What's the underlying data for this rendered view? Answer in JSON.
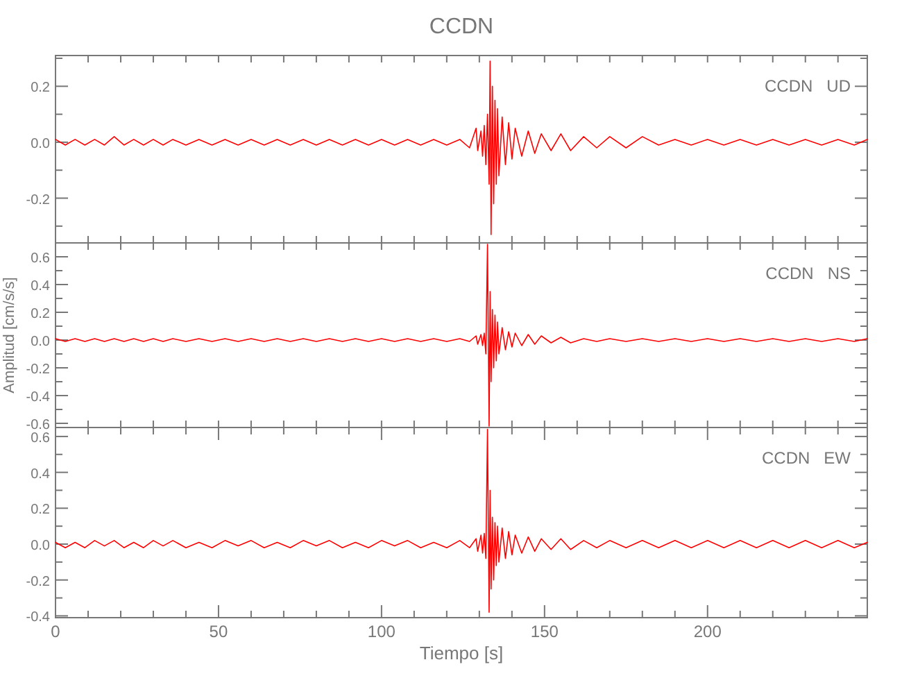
{
  "chart_data": [
    {
      "type": "line",
      "title": "CCDN",
      "annotations": [
        "CCDN   UD"
      ],
      "tick_labels": "y",
      "xlim": [
        0,
        249
      ],
      "xticks": [
        {
          "value": 0,
          "label": null
        },
        {
          "value": 10,
          "label": null
        },
        {
          "value": 20,
          "label": null
        },
        {
          "value": 30,
          "label": null
        },
        {
          "value": 40,
          "label": null
        },
        {
          "value": 50,
          "label": null
        },
        {
          "value": 60,
          "label": null
        },
        {
          "value": 70,
          "label": null
        },
        {
          "value": 80,
          "label": null
        },
        {
          "value": 90,
          "label": null
        },
        {
          "value": 100,
          "label": null
        },
        {
          "value": 110,
          "label": null
        },
        {
          "value": 120,
          "label": null
        },
        {
          "value": 130,
          "label": null
        },
        {
          "value": 140,
          "label": null
        },
        {
          "value": 150,
          "label": null
        },
        {
          "value": 160,
          "label": null
        },
        {
          "value": 170,
          "label": null
        },
        {
          "value": 180,
          "label": null
        },
        {
          "value": 190,
          "label": null
        },
        {
          "value": 200,
          "label": null
        },
        {
          "value": 210,
          "label": null
        },
        {
          "value": 220,
          "label": null
        },
        {
          "value": 230,
          "label": null
        },
        {
          "value": 240,
          "label": null
        }
      ],
      "ylim": [
        -0.36,
        0.31
      ],
      "yticks": [
        {
          "value": -0.3,
          "label": null
        },
        {
          "value": -0.2,
          "label": "-0.2"
        },
        {
          "value": -0.1,
          "label": null
        },
        {
          "value": 0,
          "label": "0.0"
        },
        {
          "value": 0.1,
          "label": null
        },
        {
          "value": 0.2,
          "label": "0.2"
        },
        {
          "value": 0.3,
          "label": null
        }
      ],
      "x": [
        0,
        3,
        6,
        9,
        12,
        15,
        18,
        21,
        24,
        27,
        30,
        33,
        36,
        40,
        44,
        48,
        52,
        56,
        60,
        64,
        68,
        72,
        76,
        80,
        84,
        88,
        92,
        96,
        100,
        104,
        108,
        112,
        116,
        120,
        124,
        127,
        129,
        129.5,
        130.5,
        131,
        131.5,
        132,
        132.5,
        133,
        133.3,
        133.6,
        134,
        134.4,
        134.8,
        135.2,
        135.6,
        136,
        137,
        138,
        139,
        140,
        141,
        143,
        145,
        147,
        149,
        152,
        155,
        158,
        162,
        166,
        170,
        175,
        180,
        185,
        190,
        195,
        200,
        205,
        210,
        215,
        220,
        225,
        230,
        235,
        240,
        245,
        249
      ],
      "series": [
        {
          "color": "#ff0000",
          "values": [
            0.01,
            -0.01,
            0.01,
            -0.01,
            0.01,
            -0.01,
            0.02,
            -0.01,
            0.01,
            -0.01,
            0.01,
            -0.01,
            0.01,
            -0.01,
            0.01,
            -0.01,
            0.01,
            -0.01,
            0.01,
            -0.01,
            0.01,
            -0.01,
            0.01,
            -0.01,
            0.01,
            -0.01,
            0.01,
            -0.01,
            0.01,
            -0.01,
            0.01,
            -0.01,
            0.01,
            -0.01,
            0.01,
            -0.02,
            0.05,
            -0.03,
            0.04,
            -0.05,
            0.06,
            -0.08,
            0.1,
            -0.15,
            0.29,
            -0.33,
            0.2,
            -0.22,
            0.15,
            -0.15,
            0.12,
            -0.12,
            0.09,
            -0.08,
            0.07,
            -0.06,
            0.05,
            -0.05,
            0.04,
            -0.04,
            0.03,
            -0.03,
            0.03,
            -0.03,
            0.02,
            -0.02,
            0.02,
            -0.02,
            0.02,
            -0.01,
            0.01,
            -0.01,
            0.01,
            -0.01,
            0.01,
            -0.01,
            0.01,
            -0.01,
            0.01,
            -0.01,
            0.01,
            -0.01,
            0.01
          ]
        }
      ]
    },
    {
      "type": "line",
      "ylabel": "Amplitud [cm/s/s]",
      "annotations": [
        "CCDN   NS"
      ],
      "tick_labels": "y",
      "xlim": [
        0,
        249
      ],
      "xticks": [
        {
          "value": 0,
          "label": null
        },
        {
          "value": 10,
          "label": null
        },
        {
          "value": 20,
          "label": null
        },
        {
          "value": 30,
          "label": null
        },
        {
          "value": 40,
          "label": null
        },
        {
          "value": 50,
          "label": null
        },
        {
          "value": 60,
          "label": null
        },
        {
          "value": 70,
          "label": null
        },
        {
          "value": 80,
          "label": null
        },
        {
          "value": 90,
          "label": null
        },
        {
          "value": 100,
          "label": null
        },
        {
          "value": 110,
          "label": null
        },
        {
          "value": 120,
          "label": null
        },
        {
          "value": 130,
          "label": null
        },
        {
          "value": 140,
          "label": null
        },
        {
          "value": 150,
          "label": null
        },
        {
          "value": 160,
          "label": null
        },
        {
          "value": 170,
          "label": null
        },
        {
          "value": 180,
          "label": null
        },
        {
          "value": 190,
          "label": null
        },
        {
          "value": 200,
          "label": null
        },
        {
          "value": 210,
          "label": null
        },
        {
          "value": 220,
          "label": null
        },
        {
          "value": 230,
          "label": null
        },
        {
          "value": 240,
          "label": null
        }
      ],
      "ylim": [
        -0.63,
        0.7
      ],
      "yticks": [
        {
          "value": -0.6,
          "label": "-0.6"
        },
        {
          "value": -0.5,
          "label": null
        },
        {
          "value": -0.4,
          "label": "-0.4"
        },
        {
          "value": -0.3,
          "label": null
        },
        {
          "value": -0.2,
          "label": "-0.2"
        },
        {
          "value": -0.1,
          "label": null
        },
        {
          "value": 0,
          "label": "0.0"
        },
        {
          "value": 0.1,
          "label": null
        },
        {
          "value": 0.2,
          "label": "0.2"
        },
        {
          "value": 0.3,
          "label": null
        },
        {
          "value": 0.4,
          "label": "0.4"
        },
        {
          "value": 0.5,
          "label": null
        },
        {
          "value": 0.6,
          "label": "0.6"
        }
      ],
      "x": [
        0,
        3,
        6,
        9,
        12,
        15,
        18,
        21,
        24,
        27,
        30,
        33,
        36,
        40,
        44,
        48,
        52,
        56,
        60,
        64,
        68,
        72,
        76,
        80,
        84,
        88,
        92,
        96,
        100,
        104,
        108,
        112,
        116,
        120,
        124,
        127,
        129,
        129.5,
        130.5,
        131,
        131.5,
        132,
        132.5,
        133,
        133.3,
        133.6,
        134,
        134.4,
        134.8,
        135.2,
        135.6,
        136,
        137,
        138,
        139,
        140,
        141,
        143,
        145,
        147,
        149,
        152,
        155,
        158,
        162,
        166,
        170,
        175,
        180,
        185,
        190,
        195,
        200,
        205,
        210,
        215,
        220,
        225,
        230,
        235,
        240,
        245,
        249
      ],
      "series": [
        {
          "color": "#ff0000",
          "values": [
            0.01,
            -0.01,
            0.01,
            -0.01,
            0.01,
            -0.01,
            0.01,
            -0.01,
            0.01,
            -0.01,
            0.01,
            -0.01,
            0.01,
            -0.01,
            0.01,
            -0.01,
            0.01,
            -0.01,
            0.01,
            -0.01,
            0.01,
            -0.01,
            0.01,
            -0.01,
            0.01,
            -0.01,
            0.01,
            -0.01,
            0.01,
            -0.01,
            0.01,
            -0.01,
            0.01,
            -0.01,
            0.01,
            -0.01,
            0.03,
            -0.03,
            0.04,
            -0.04,
            0.05,
            -0.1,
            0.69,
            -0.62,
            0.35,
            -0.3,
            0.22,
            -0.2,
            0.18,
            -0.15,
            0.13,
            -0.1,
            0.09,
            -0.07,
            0.06,
            -0.05,
            0.05,
            -0.04,
            0.04,
            -0.03,
            0.03,
            -0.02,
            0.02,
            -0.02,
            0.01,
            -0.01,
            0.01,
            -0.01,
            0.01,
            -0.01,
            0.01,
            -0.01,
            0.01,
            -0.01,
            0.01,
            -0.01,
            0.01,
            -0.01,
            0.01,
            -0.01,
            0.01,
            -0.01,
            0.01
          ]
        }
      ]
    },
    {
      "type": "line",
      "xlabel": "Tiempo [s]",
      "annotations": [
        "CCDN   EW"
      ],
      "xlim": [
        0,
        249
      ],
      "xticks": [
        {
          "value": 0,
          "label": "0"
        },
        {
          "value": 10,
          "label": null
        },
        {
          "value": 20,
          "label": null
        },
        {
          "value": 30,
          "label": null
        },
        {
          "value": 40,
          "label": null
        },
        {
          "value": 50,
          "label": "50"
        },
        {
          "value": 60,
          "label": null
        },
        {
          "value": 70,
          "label": null
        },
        {
          "value": 80,
          "label": null
        },
        {
          "value": 90,
          "label": null
        },
        {
          "value": 100,
          "label": "100"
        },
        {
          "value": 110,
          "label": null
        },
        {
          "value": 120,
          "label": null
        },
        {
          "value": 130,
          "label": null
        },
        {
          "value": 140,
          "label": null
        },
        {
          "value": 150,
          "label": "150"
        },
        {
          "value": 160,
          "label": null
        },
        {
          "value": 170,
          "label": null
        },
        {
          "value": 180,
          "label": null
        },
        {
          "value": 190,
          "label": null
        },
        {
          "value": 200,
          "label": "200"
        },
        {
          "value": 210,
          "label": null
        },
        {
          "value": 220,
          "label": null
        },
        {
          "value": 230,
          "label": null
        },
        {
          "value": 240,
          "label": null
        }
      ],
      "ylim": [
        -0.41,
        0.65
      ],
      "yticks": [
        {
          "value": -0.4,
          "label": "-0.4"
        },
        {
          "value": -0.3,
          "label": null
        },
        {
          "value": -0.2,
          "label": "-0.2"
        },
        {
          "value": -0.1,
          "label": null
        },
        {
          "value": 0,
          "label": "0.0"
        },
        {
          "value": 0.1,
          "label": null
        },
        {
          "value": 0.2,
          "label": "0.2"
        },
        {
          "value": 0.3,
          "label": null
        },
        {
          "value": 0.4,
          "label": "0.4"
        },
        {
          "value": 0.5,
          "label": null
        },
        {
          "value": 0.6,
          "label": "0.6"
        }
      ],
      "x": [
        0,
        3,
        6,
        9,
        12,
        15,
        18,
        21,
        24,
        27,
        30,
        33,
        36,
        40,
        44,
        48,
        52,
        56,
        60,
        64,
        68,
        72,
        76,
        80,
        84,
        88,
        92,
        96,
        100,
        104,
        108,
        112,
        116,
        120,
        124,
        127,
        129,
        129.5,
        130.5,
        131,
        131.5,
        132,
        132.5,
        133,
        133.3,
        133.6,
        134,
        134.4,
        134.8,
        135.2,
        135.6,
        136,
        137,
        138,
        139,
        140,
        141,
        143,
        145,
        147,
        149,
        152,
        155,
        158,
        162,
        166,
        170,
        175,
        180,
        185,
        190,
        195,
        200,
        205,
        210,
        215,
        220,
        225,
        230,
        235,
        240,
        245,
        249
      ],
      "series": [
        {
          "color": "#ff0000",
          "values": [
            0.01,
            -0.02,
            0.01,
            -0.02,
            0.02,
            -0.01,
            0.02,
            -0.02,
            0.01,
            -0.02,
            0.02,
            -0.01,
            0.02,
            -0.02,
            0.01,
            -0.02,
            0.02,
            -0.01,
            0.02,
            -0.02,
            0.01,
            -0.02,
            0.02,
            -0.01,
            0.02,
            -0.02,
            0.01,
            -0.02,
            0.02,
            -0.01,
            0.02,
            -0.02,
            0.01,
            -0.02,
            0.02,
            -0.02,
            0.03,
            -0.04,
            0.05,
            -0.05,
            0.06,
            -0.08,
            0.64,
            -0.38,
            0.3,
            -0.25,
            0.15,
            -0.2,
            0.12,
            -0.12,
            0.1,
            -0.1,
            0.09,
            -0.08,
            0.07,
            -0.06,
            0.05,
            -0.05,
            0.04,
            -0.04,
            0.03,
            -0.03,
            0.03,
            -0.03,
            0.02,
            -0.02,
            0.02,
            -0.02,
            0.02,
            -0.02,
            0.02,
            -0.02,
            0.02,
            -0.02,
            0.02,
            -0.02,
            0.02,
            -0.02,
            0.02,
            -0.02,
            0.02,
            -0.02,
            0.01
          ]
        }
      ]
    }
  ]
}
